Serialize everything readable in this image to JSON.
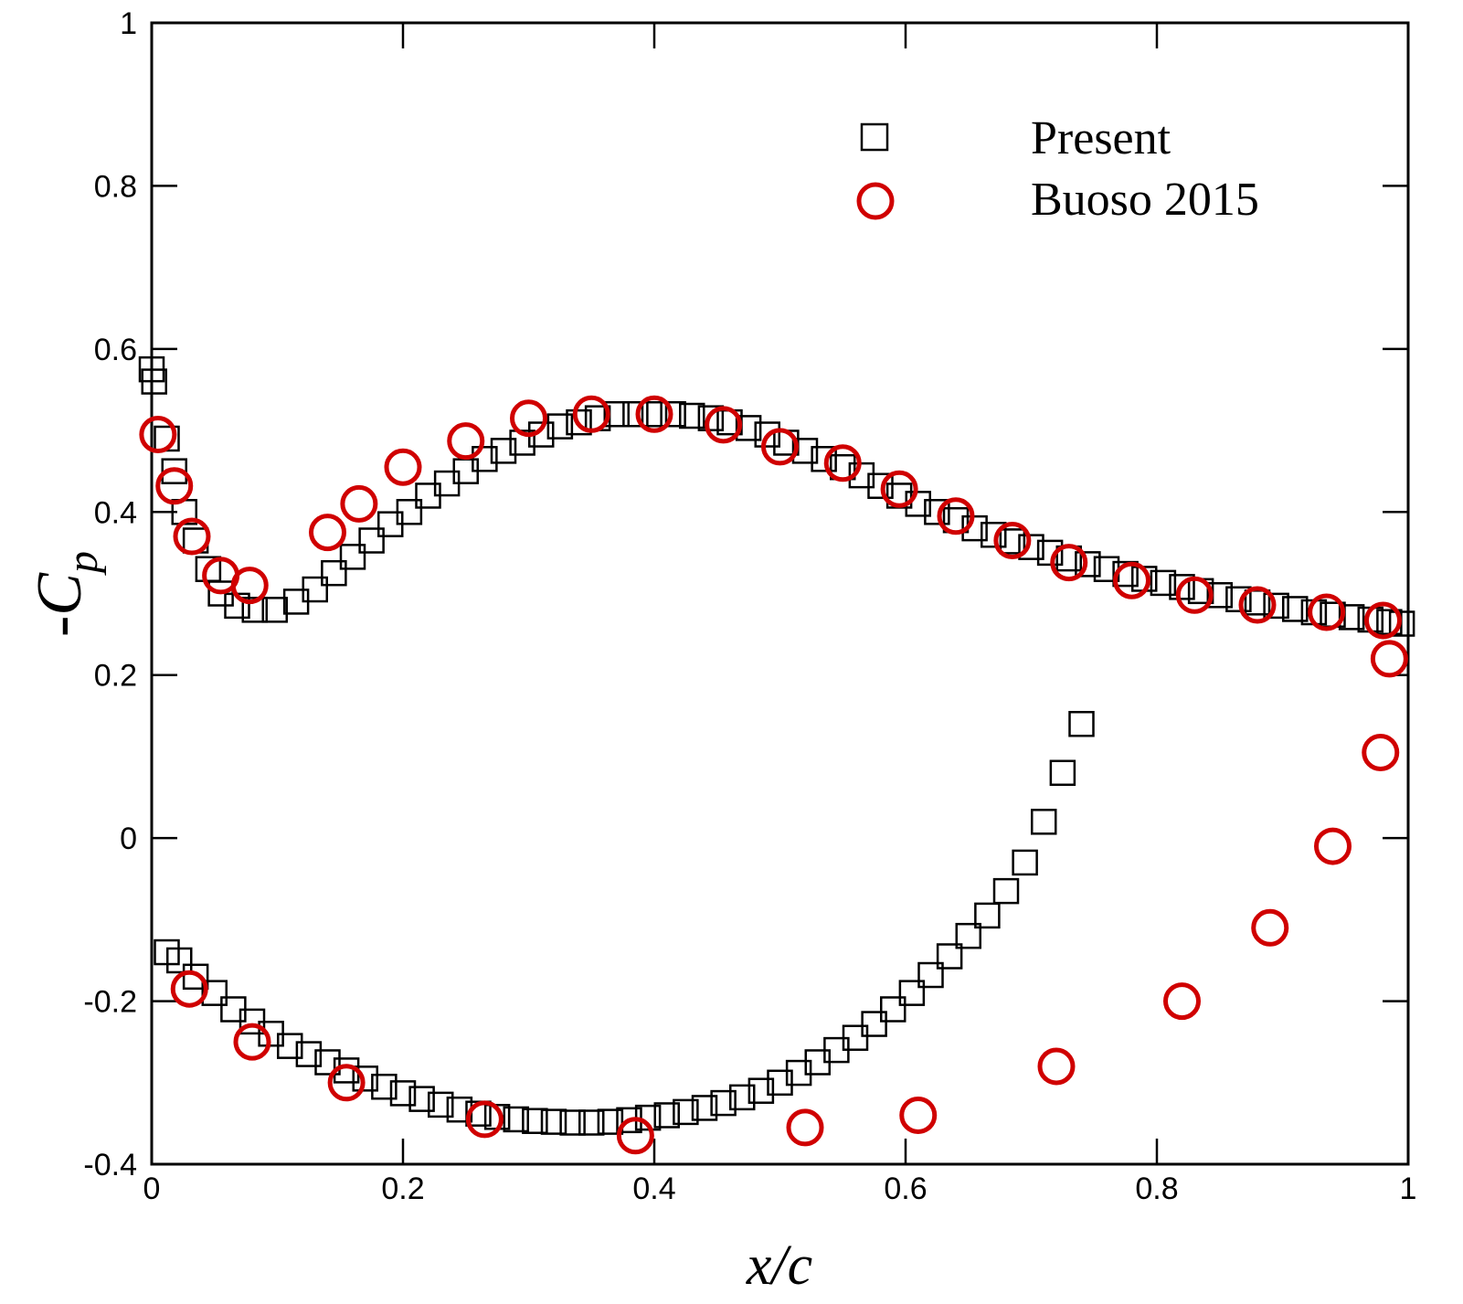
{
  "chart_data": {
    "type": "scatter",
    "title": "",
    "xlabel": "x/c",
    "ylabel_main": "-C",
    "ylabel_sub": "p",
    "xlim": [
      0,
      1
    ],
    "ylim": [
      -0.4,
      1
    ],
    "x_ticks": [
      0,
      0.2,
      0.4,
      0.6,
      0.8,
      1
    ],
    "x_tick_labels": [
      "0",
      "0.2",
      "0.4",
      "0.6",
      "0.8",
      "1"
    ],
    "y_ticks": [
      -0.4,
      -0.2,
      0,
      0.2,
      0.4,
      0.6,
      0.8,
      1
    ],
    "y_tick_labels": [
      "-0.4",
      "-0.2",
      "0",
      "0.2",
      "0.4",
      "0.6",
      "0.8",
      "1"
    ],
    "grid": false,
    "legend_position": "top-right",
    "series": [
      {
        "name": "Present",
        "marker": "square",
        "color": "#000000",
        "upper": [
          [
            0.0,
            0.575
          ],
          [
            0.002,
            0.56
          ],
          [
            0.012,
            0.49
          ],
          [
            0.018,
            0.45
          ],
          [
            0.026,
            0.4
          ],
          [
            0.035,
            0.365
          ],
          [
            0.045,
            0.33
          ],
          [
            0.055,
            0.3
          ],
          [
            0.068,
            0.285
          ],
          [
            0.082,
            0.28
          ],
          [
            0.098,
            0.28
          ],
          [
            0.115,
            0.29
          ],
          [
            0.13,
            0.305
          ],
          [
            0.145,
            0.325
          ],
          [
            0.16,
            0.345
          ],
          [
            0.175,
            0.365
          ],
          [
            0.19,
            0.385
          ],
          [
            0.205,
            0.4
          ],
          [
            0.22,
            0.42
          ],
          [
            0.235,
            0.435
          ],
          [
            0.25,
            0.45
          ],
          [
            0.265,
            0.465
          ],
          [
            0.28,
            0.475
          ],
          [
            0.295,
            0.485
          ],
          [
            0.31,
            0.495
          ],
          [
            0.325,
            0.505
          ],
          [
            0.34,
            0.51
          ],
          [
            0.355,
            0.515
          ],
          [
            0.37,
            0.52
          ],
          [
            0.385,
            0.52
          ],
          [
            0.4,
            0.52
          ],
          [
            0.415,
            0.52
          ],
          [
            0.43,
            0.518
          ],
          [
            0.445,
            0.515
          ],
          [
            0.46,
            0.51
          ],
          [
            0.475,
            0.503
          ],
          [
            0.49,
            0.495
          ],
          [
            0.505,
            0.485
          ],
          [
            0.52,
            0.475
          ],
          [
            0.535,
            0.465
          ],
          [
            0.55,
            0.455
          ],
          [
            0.565,
            0.445
          ],
          [
            0.58,
            0.432
          ],
          [
            0.595,
            0.42
          ],
          [
            0.61,
            0.41
          ],
          [
            0.625,
            0.4
          ],
          [
            0.64,
            0.39
          ],
          [
            0.655,
            0.38
          ],
          [
            0.67,
            0.372
          ],
          [
            0.685,
            0.364
          ],
          [
            0.7,
            0.357
          ],
          [
            0.715,
            0.35
          ],
          [
            0.73,
            0.343
          ],
          [
            0.745,
            0.336
          ],
          [
            0.76,
            0.33
          ],
          [
            0.775,
            0.324
          ],
          [
            0.79,
            0.318
          ],
          [
            0.805,
            0.313
          ],
          [
            0.82,
            0.308
          ],
          [
            0.835,
            0.303
          ],
          [
            0.85,
            0.298
          ],
          [
            0.865,
            0.293
          ],
          [
            0.88,
            0.289
          ],
          [
            0.895,
            0.285
          ],
          [
            0.91,
            0.281
          ],
          [
            0.925,
            0.277
          ],
          [
            0.94,
            0.274
          ],
          [
            0.955,
            0.271
          ],
          [
            0.97,
            0.268
          ],
          [
            0.985,
            0.265
          ],
          [
            0.995,
            0.263
          ]
        ],
        "lower": [
          [
            0.012,
            -0.14
          ],
          [
            0.022,
            -0.15
          ],
          [
            0.035,
            -0.17
          ],
          [
            0.05,
            -0.19
          ],
          [
            0.065,
            -0.21
          ],
          [
            0.08,
            -0.225
          ],
          [
            0.095,
            -0.24
          ],
          [
            0.11,
            -0.255
          ],
          [
            0.125,
            -0.265
          ],
          [
            0.14,
            -0.275
          ],
          [
            0.155,
            -0.285
          ],
          [
            0.17,
            -0.295
          ],
          [
            0.185,
            -0.305
          ],
          [
            0.2,
            -0.313
          ],
          [
            0.215,
            -0.32
          ],
          [
            0.23,
            -0.327
          ],
          [
            0.245,
            -0.333
          ],
          [
            0.26,
            -0.338
          ],
          [
            0.275,
            -0.342
          ],
          [
            0.29,
            -0.345
          ],
          [
            0.305,
            -0.347
          ],
          [
            0.32,
            -0.348
          ],
          [
            0.335,
            -0.349
          ],
          [
            0.35,
            -0.349
          ],
          [
            0.365,
            -0.348
          ],
          [
            0.38,
            -0.346
          ],
          [
            0.395,
            -0.343
          ],
          [
            0.41,
            -0.34
          ],
          [
            0.425,
            -0.336
          ],
          [
            0.44,
            -0.331
          ],
          [
            0.455,
            -0.325
          ],
          [
            0.47,
            -0.318
          ],
          [
            0.485,
            -0.31
          ],
          [
            0.5,
            -0.3
          ],
          [
            0.515,
            -0.288
          ],
          [
            0.53,
            -0.275
          ],
          [
            0.545,
            -0.26
          ],
          [
            0.56,
            -0.245
          ],
          [
            0.575,
            -0.228
          ],
          [
            0.59,
            -0.21
          ],
          [
            0.605,
            -0.19
          ],
          [
            0.62,
            -0.168
          ],
          [
            0.635,
            -0.145
          ],
          [
            0.65,
            -0.12
          ],
          [
            0.665,
            -0.095
          ],
          [
            0.68,
            -0.065
          ],
          [
            0.695,
            -0.03
          ],
          [
            0.71,
            0.02
          ],
          [
            0.725,
            0.08
          ],
          [
            0.74,
            0.14
          ]
        ]
      },
      {
        "name": "Buoso 2015",
        "marker": "circle",
        "color": "#d00000",
        "points": [
          [
            0.005,
            0.495
          ],
          [
            0.018,
            0.432
          ],
          [
            0.032,
            0.37
          ],
          [
            0.055,
            0.322
          ],
          [
            0.078,
            0.31
          ],
          [
            0.14,
            0.375
          ],
          [
            0.165,
            0.41
          ],
          [
            0.2,
            0.455
          ],
          [
            0.25,
            0.487
          ],
          [
            0.3,
            0.515
          ],
          [
            0.35,
            0.52
          ],
          [
            0.4,
            0.52
          ],
          [
            0.455,
            0.507
          ],
          [
            0.5,
            0.48
          ],
          [
            0.55,
            0.46
          ],
          [
            0.595,
            0.428
          ],
          [
            0.64,
            0.395
          ],
          [
            0.685,
            0.365
          ],
          [
            0.73,
            0.338
          ],
          [
            0.78,
            0.316
          ],
          [
            0.83,
            0.298
          ],
          [
            0.88,
            0.286
          ],
          [
            0.935,
            0.277
          ],
          [
            0.98,
            0.267
          ],
          [
            0.985,
            0.22
          ],
          [
            0.978,
            0.105
          ],
          [
            0.94,
            -0.01
          ],
          [
            0.89,
            -0.11
          ],
          [
            0.82,
            -0.2
          ],
          [
            0.72,
            -0.28
          ],
          [
            0.61,
            -0.34
          ],
          [
            0.52,
            -0.355
          ],
          [
            0.385,
            -0.365
          ],
          [
            0.265,
            -0.345
          ],
          [
            0.155,
            -0.3
          ],
          [
            0.08,
            -0.25
          ],
          [
            0.03,
            -0.185
          ]
        ]
      }
    ]
  }
}
